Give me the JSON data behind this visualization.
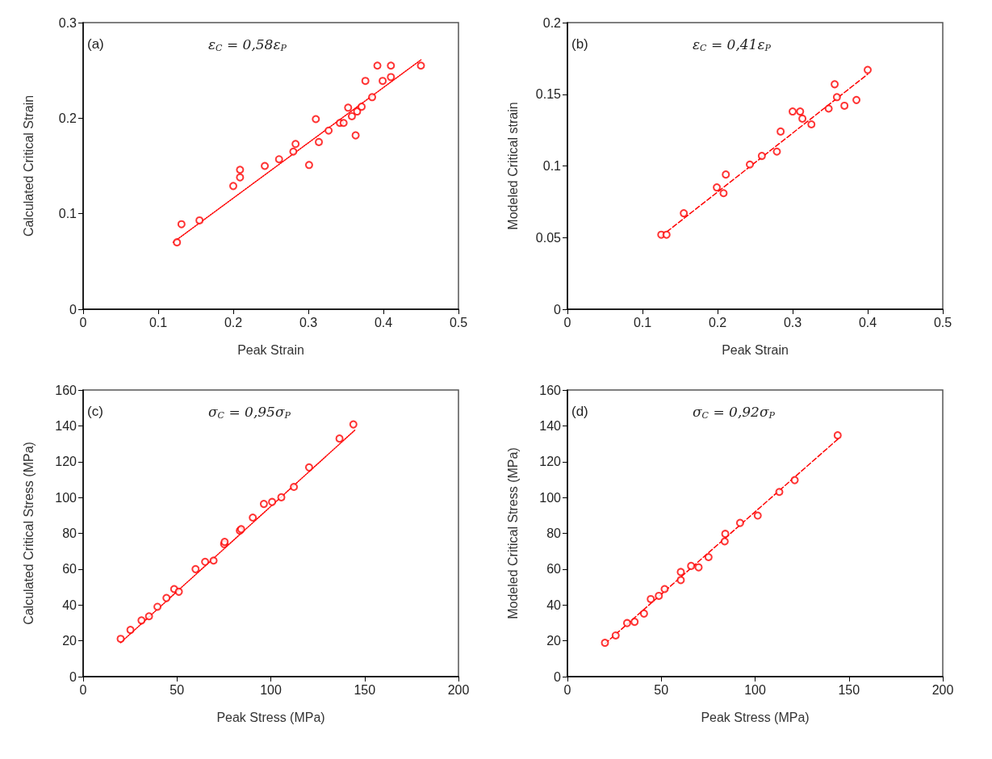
{
  "chart_data": [
    {
      "type": "scatter",
      "xlabel": "Peak Strain",
      "ylabel": "Calculated Critical Strain",
      "annotations": [
        "(a)",
        "ε$_{C}$ = 0,58ε$_{P}$"
      ],
      "xlim": [
        0,
        0.5
      ],
      "xticks": [
        0,
        0.1,
        0.2,
        0.3,
        0.4,
        0.5
      ],
      "ylim": [
        0,
        0.3
      ],
      "yticks": [
        0,
        0.1,
        0.2,
        0.3
      ],
      "grid": false,
      "marker": "circle",
      "series": [
        {
          "color": "#ff0000",
          "x": [
            0.125,
            0.131,
            0.155,
            0.2,
            0.209,
            0.209,
            0.242,
            0.261,
            0.28,
            0.283,
            0.301,
            0.31,
            0.314,
            0.327,
            0.342,
            0.347,
            0.353,
            0.358,
            0.363,
            0.365,
            0.371,
            0.385,
            0.376,
            0.392,
            0.399,
            0.41,
            0.41,
            0.45
          ],
          "values": [
            0.07,
            0.089,
            0.093,
            0.129,
            0.138,
            0.146,
            0.15,
            0.157,
            0.165,
            0.173,
            0.151,
            0.199,
            0.175,
            0.187,
            0.195,
            0.195,
            0.211,
            0.202,
            0.182,
            0.207,
            0.212,
            0.222,
            0.239,
            0.255,
            0.239,
            0.255,
            0.243,
            0.255
          ]
        },
        {
          "type": "line",
          "color": "#ff0000",
          "line_style": "dotted",
          "marker": "none",
          "x": [
            0.12,
            0.45
          ],
          "values": [
            0.07,
            0.261
          ]
        }
      ]
    },
    {
      "type": "scatter",
      "xlabel": "Peak Strain",
      "ylabel": "Modeled Critical strain",
      "annotations": [
        "(b)",
        "ε$_{C}$ = 0,41ε$_{P}$"
      ],
      "xlim": [
        0,
        0.5
      ],
      "xticks": [
        0,
        0.1,
        0.2,
        0.3,
        0.4,
        0.5
      ],
      "ylim": [
        0,
        0.2
      ],
      "yticks": [
        0,
        0.05,
        0.1,
        0.15,
        0.2
      ],
      "grid": false,
      "marker": "circle",
      "series": [
        {
          "color": "#ff0000",
          "x": [
            0.125,
            0.132,
            0.155,
            0.199,
            0.211,
            0.208,
            0.243,
            0.259,
            0.279,
            0.284,
            0.3,
            0.31,
            0.313,
            0.325,
            0.348,
            0.356,
            0.359,
            0.369,
            0.385,
            0.4
          ],
          "values": [
            0.052,
            0.052,
            0.067,
            0.085,
            0.094,
            0.081,
            0.101,
            0.107,
            0.11,
            0.124,
            0.138,
            0.138,
            0.133,
            0.129,
            0.14,
            0.157,
            0.148,
            0.142,
            0.146,
            0.167
          ]
        },
        {
          "type": "line",
          "color": "#ff0000",
          "line_style": "dashed",
          "marker": "none",
          "x": [
            0.125,
            0.4
          ],
          "values": [
            0.051,
            0.164
          ]
        }
      ]
    },
    {
      "type": "scatter",
      "xlabel": "Peak Stress (MPa)",
      "ylabel": "Calculated Critical Stress (MPa)",
      "annotations": [
        "(c)",
        "σ$_{C}$ = 0,95σ$_{P}$"
      ],
      "xlim": [
        0,
        200
      ],
      "xticks": [
        0,
        50,
        100,
        150,
        200
      ],
      "ylim": [
        0,
        160
      ],
      "yticks": [
        0,
        20,
        40,
        60,
        80,
        100,
        120,
        140,
        160
      ],
      "grid": false,
      "marker": "circle",
      "series": [
        {
          "color": "#ff0000",
          "x": [
            20,
            25.2,
            31.1,
            35.1,
            39.6,
            44.4,
            48.5,
            51,
            59.9,
            65,
            69.5,
            75.1,
            75.4,
            83.5,
            84.2,
            90.4,
            96.3,
            100.7,
            105.6,
            112.3,
            120.4,
            136.6,
            144
          ],
          "values": [
            21.1,
            26.1,
            31.4,
            33.7,
            39,
            43.9,
            48.9,
            47.4,
            60,
            64.1,
            64.8,
            74,
            75.2,
            81.5,
            82.3,
            88.8,
            96.4,
            97.5,
            100.1,
            105.9,
            116.8,
            132.9,
            140.8
          ]
        },
        {
          "type": "line",
          "color": "#ff0000",
          "line_style": "dotted",
          "marker": "none",
          "x": [
            20,
            145
          ],
          "values": [
            19,
            137.8
          ]
        }
      ]
    },
    {
      "type": "scatter",
      "xlabel": "Peak Stress (MPa)",
      "ylabel": "Modeled Critical Stress (MPa)",
      "annotations": [
        "(d)",
        "σ$_{C}$ = 0,92σ$_{P}$"
      ],
      "xlim": [
        0,
        200
      ],
      "xticks": [
        0,
        50,
        100,
        150,
        200
      ],
      "ylim": [
        0,
        160
      ],
      "yticks": [
        0,
        20,
        40,
        60,
        80,
        100,
        120,
        140,
        160
      ],
      "grid": false,
      "marker": "circle",
      "series": [
        {
          "color": "#ff0000",
          "x": [
            20,
            25.7,
            31.8,
            35.8,
            40.8,
            44.4,
            48.7,
            51.8,
            60.4,
            60.4,
            65.9,
            69.9,
            75.2,
            83.8,
            84.1,
            92,
            101.4,
            112.9,
            121.1,
            144
          ],
          "values": [
            18.9,
            23,
            29.9,
            30.6,
            35.2,
            43.3,
            45.1,
            48.9,
            53.9,
            58.4,
            61.8,
            61,
            66.7,
            75.5,
            79.7,
            85.8,
            89.9,
            103.1,
            109.7,
            134.7
          ]
        },
        {
          "type": "line",
          "color": "#ff0000",
          "line_style": "dashed",
          "marker": "none",
          "x": [
            20,
            145
          ],
          "values": [
            18.4,
            133.4
          ]
        }
      ]
    }
  ]
}
